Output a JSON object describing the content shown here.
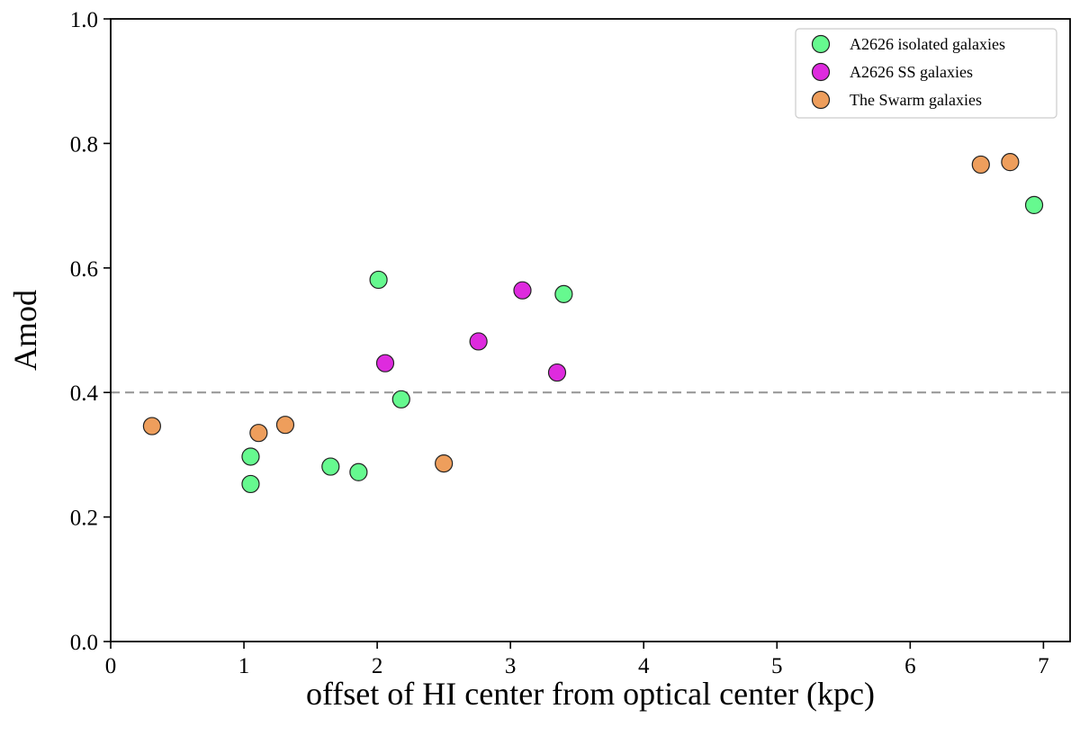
{
  "chart_data": {
    "type": "scatter",
    "xlabel": "offset of HI center from optical center (kpc)",
    "ylabel": "Amod",
    "xlim": [
      0,
      7.2
    ],
    "ylim": [
      0.0,
      1.0
    ],
    "xticks": [
      0,
      1,
      2,
      3,
      4,
      5,
      6,
      7
    ],
    "yticks": [
      0.0,
      0.2,
      0.4,
      0.6,
      0.8,
      1.0
    ],
    "xtick_labels": [
      "0",
      "1",
      "2",
      "3",
      "4",
      "5",
      "6",
      "7"
    ],
    "ytick_labels": [
      "0.0",
      "0.2",
      "0.4",
      "0.6",
      "0.8",
      "1.0"
    ],
    "grid": false,
    "legend_position": "top-right",
    "reference_line": {
      "y": 0.4,
      "style": "dashed",
      "color": "#999999"
    },
    "series": [
      {
        "name": "A2626 isolated galaxies",
        "color": "#66f98f",
        "points": [
          {
            "x": 1.05,
            "y": 0.297
          },
          {
            "x": 1.05,
            "y": 0.253
          },
          {
            "x": 1.65,
            "y": 0.281
          },
          {
            "x": 1.86,
            "y": 0.272
          },
          {
            "x": 2.01,
            "y": 0.581
          },
          {
            "x": 2.18,
            "y": 0.389
          },
          {
            "x": 3.4,
            "y": 0.558
          },
          {
            "x": 6.93,
            "y": 0.701
          }
        ]
      },
      {
        "name": "A2626 SS galaxies",
        "color": "#de2bde",
        "points": [
          {
            "x": 2.06,
            "y": 0.447
          },
          {
            "x": 2.76,
            "y": 0.482
          },
          {
            "x": 3.09,
            "y": 0.564
          },
          {
            "x": 3.35,
            "y": 0.432
          }
        ]
      },
      {
        "name": "The Swarm galaxies",
        "color": "#ee9e5c",
        "points": [
          {
            "x": 0.31,
            "y": 0.346
          },
          {
            "x": 1.11,
            "y": 0.335
          },
          {
            "x": 1.31,
            "y": 0.348
          },
          {
            "x": 2.5,
            "y": 0.286
          },
          {
            "x": 6.53,
            "y": 0.766
          },
          {
            "x": 6.75,
            "y": 0.77
          }
        ]
      }
    ]
  }
}
